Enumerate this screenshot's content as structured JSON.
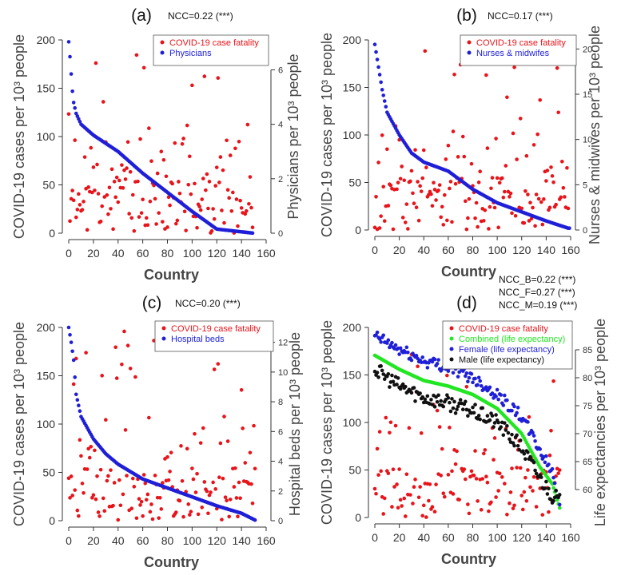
{
  "colors": {
    "case_fatality": "#e8141a",
    "physicians": "#1f1fd8",
    "combined": "#22e622",
    "female": "#1f1fd8",
    "male": "#111111"
  },
  "chart_data": [
    {
      "type": "scatter",
      "panel_label": "(a)",
      "ncc": [
        "NCC=0.22 (***)"
      ],
      "xlabel": "Country",
      "ylabel": "COVID-19 cases per 10³ people",
      "y2label": "Physicians per 10³ people",
      "xlim": [
        0,
        160
      ],
      "ylim": [
        0,
        200
      ],
      "y2lim": [
        0,
        7.1
      ],
      "xticks": [
        "0",
        "20",
        "40",
        "60",
        "80",
        "100",
        "120",
        "140",
        "160"
      ],
      "yticks": [
        "0",
        "50",
        "100",
        "150",
        "200"
      ],
      "y2ticks": [
        "0",
        "2",
        "4",
        "6"
      ],
      "y2tick_values": [
        0,
        2,
        4,
        6
      ],
      "n_points": 150,
      "series": [
        {
          "name": "COVID-19 case fatality",
          "color": "#e8141a",
          "axis": "left",
          "kind": "scatter",
          "seed": 11,
          "range": [
            0,
            200
          ]
        },
        {
          "name": "Physicians",
          "color": "#1f1fd8",
          "axis": "right",
          "kind": "decreasing",
          "start": 7.1,
          "knots": [
            [
              0,
              7.1
            ],
            [
              2,
              5.8
            ],
            [
              4,
              4.8
            ],
            [
              6,
              4.4
            ],
            [
              10,
              4.0
            ],
            [
              20,
              3.6
            ],
            [
              40,
              3.0
            ],
            [
              60,
              2.2
            ],
            [
              80,
              1.5
            ],
            [
              100,
              0.8
            ],
            [
              120,
              0.15
            ],
            [
              150,
              0
            ]
          ]
        }
      ]
    },
    {
      "type": "scatter",
      "panel_label": "(b)",
      "ncc": [
        "NCC=0.17 (***)"
      ],
      "xlabel": "Country",
      "ylabel": "COVID-19 cases per 10³ people",
      "y2label": "Nurses & midwives per 10³ people",
      "xlim": [
        0,
        160
      ],
      "ylim": [
        0,
        200
      ],
      "y2lim": [
        0,
        21
      ],
      "xticks": [
        "0",
        "20",
        "40",
        "60",
        "80",
        "100",
        "120",
        "140",
        "160"
      ],
      "yticks": [
        "0",
        "50",
        "100",
        "150",
        "200"
      ],
      "y2ticks": [
        "0",
        "5",
        "10",
        "15",
        "20"
      ],
      "y2tick_values": [
        0,
        5,
        10,
        15,
        20
      ],
      "n_points": 160,
      "series": [
        {
          "name": "COVID-19 case fatality",
          "color": "#e8141a",
          "axis": "left",
          "kind": "scatter",
          "seed": 22,
          "range": [
            0,
            200
          ]
        },
        {
          "name": "Nurses & midwifes",
          "color": "#1f1fd8",
          "axis": "right",
          "kind": "decreasing",
          "knots": [
            [
              0,
              20.5
            ],
            [
              3,
              18
            ],
            [
              6,
              15.5
            ],
            [
              10,
              13
            ],
            [
              20,
              10.5
            ],
            [
              30,
              8.5
            ],
            [
              40,
              7.5
            ],
            [
              60,
              6.5
            ],
            [
              80,
              4.5
            ],
            [
              100,
              3.0
            ],
            [
              120,
              2.0
            ],
            [
              140,
              1.0
            ],
            [
              158,
              0.2
            ]
          ]
        }
      ]
    },
    {
      "type": "scatter",
      "panel_label": "(c)",
      "ncc": [
        "NCC=0.20 (***)"
      ],
      "xlabel": "Country",
      "ylabel": "COVID-19 cases per 10³ people",
      "y2label": "Hospital beds per 10³ people",
      "xlim": [
        0,
        160
      ],
      "ylim": [
        0,
        200
      ],
      "y2lim": [
        0,
        13
      ],
      "xticks": [
        "0",
        "20",
        "40",
        "60",
        "80",
        "100",
        "120",
        "140",
        "160"
      ],
      "yticks": [
        "0",
        "50",
        "100",
        "150",
        "200"
      ],
      "y2ticks": [
        "0",
        "2",
        "4",
        "6",
        "8",
        "10",
        "12"
      ],
      "y2tick_values": [
        0,
        2,
        4,
        6,
        8,
        10,
        12
      ],
      "n_points": 152,
      "series": [
        {
          "name": "COVID-19 case fatality",
          "color": "#e8141a",
          "axis": "left",
          "kind": "scatter",
          "seed": 33,
          "range": [
            0,
            200
          ]
        },
        {
          "name": "Hospital beds",
          "color": "#1f1fd8",
          "axis": "right",
          "kind": "decreasing",
          "knots": [
            [
              0,
              13
            ],
            [
              2,
              12
            ],
            [
              4,
              10.8
            ],
            [
              6,
              8.5
            ],
            [
              10,
              7
            ],
            [
              20,
              5.5
            ],
            [
              30,
              4.5
            ],
            [
              40,
              3.8
            ],
            [
              60,
              2.8
            ],
            [
              80,
              2.2
            ],
            [
              100,
              1.6
            ],
            [
              120,
              1.0
            ],
            [
              140,
              0.5
            ],
            [
              152,
              0
            ]
          ]
        }
      ]
    },
    {
      "type": "scatter",
      "panel_label": "(d)",
      "ncc": [
        "NCC_B=0.22 (***)",
        "NCC_F=0.27 (***)",
        "NCC_M=0.19 (***)"
      ],
      "xlabel": "Country",
      "ylabel": "COVID-19 cases per 10³ people",
      "y2label": "Life expectancies per 10³ people",
      "xlim": [
        0,
        160
      ],
      "ylim": [
        0,
        200
      ],
      "y2lim": [
        55,
        89
      ],
      "xticks": [
        "0",
        "20",
        "40",
        "60",
        "80",
        "100",
        "120",
        "140",
        "160"
      ],
      "yticks": [
        "0",
        "50",
        "100",
        "150",
        "200"
      ],
      "y2ticks": [
        "60",
        "65",
        "70",
        "75",
        "80",
        "85"
      ],
      "y2tick_values": [
        60,
        65,
        70,
        75,
        80,
        85
      ],
      "n_points": 152,
      "series": [
        {
          "name": "COVID-19 case fatality",
          "color": "#e8141a",
          "axis": "left",
          "kind": "scatter",
          "seed": 44,
          "range": [
            0,
            200
          ]
        },
        {
          "name": "Combined (life expectancy)",
          "color": "#22e622",
          "axis": "right",
          "kind": "decreasing",
          "knots": [
            [
              0,
              84
            ],
            [
              20,
              81.5
            ],
            [
              40,
              79.5
            ],
            [
              60,
              78.5
            ],
            [
              80,
              77
            ],
            [
              100,
              74.5
            ],
            [
              120,
              70
            ],
            [
              135,
              64
            ],
            [
              145,
              61
            ],
            [
              152,
              56
            ]
          ]
        },
        {
          "name": "Female (life expectancy)",
          "color": "#1f1fd8",
          "axis": "right",
          "kind": "noisy",
          "jitter": 1.1,
          "knots": [
            [
              0,
              87.5
            ],
            [
              20,
              85
            ],
            [
              40,
              83
            ],
            [
              60,
              82
            ],
            [
              80,
              80
            ],
            [
              100,
              77
            ],
            [
              120,
              73
            ],
            [
              135,
              67
            ],
            [
              145,
              63
            ],
            [
              152,
              57
            ]
          ]
        },
        {
          "name": "Male (life expectancy)",
          "color": "#111111",
          "axis": "right",
          "kind": "noisy",
          "jitter": 1.4,
          "knots": [
            [
              0,
              81.5
            ],
            [
              20,
              78.5
            ],
            [
              40,
              76.5
            ],
            [
              60,
              75.5
            ],
            [
              80,
              74
            ],
            [
              100,
              72
            ],
            [
              120,
              67.5
            ],
            [
              135,
              62
            ],
            [
              145,
              59
            ],
            [
              152,
              58
            ]
          ]
        }
      ]
    }
  ]
}
